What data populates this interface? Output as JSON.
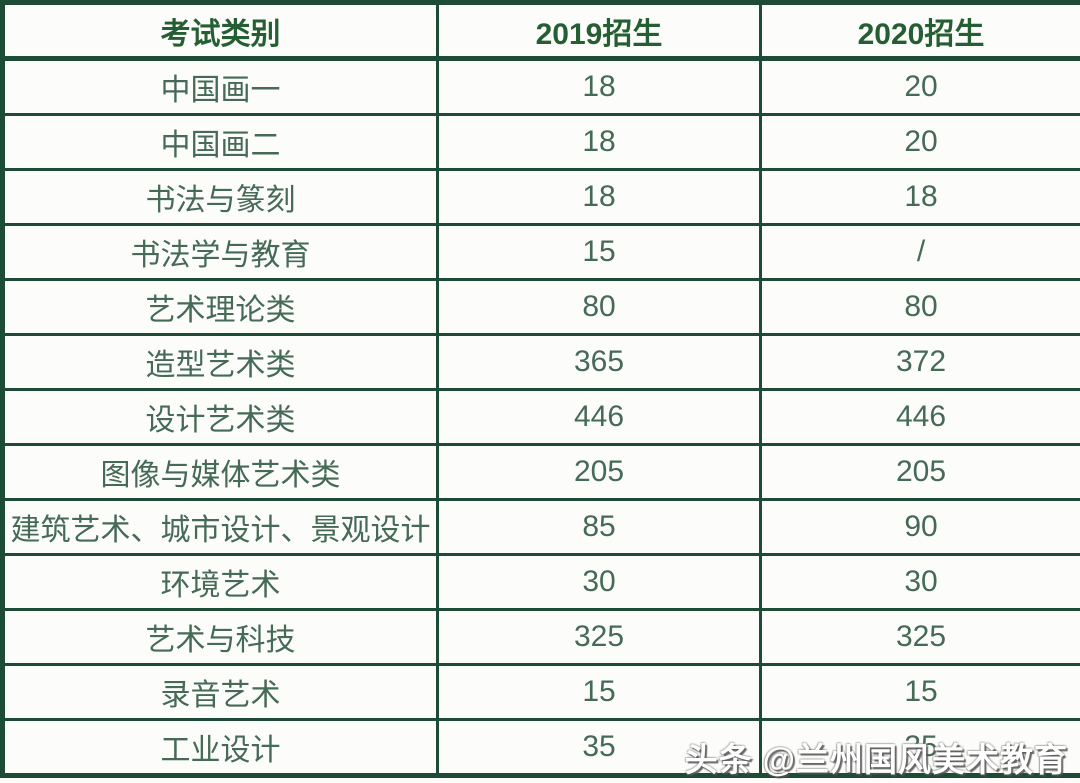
{
  "table": {
    "columns": [
      {
        "label": "考试类别"
      },
      {
        "label": "2019招生"
      },
      {
        "label": "2020招生"
      }
    ],
    "rows": [
      {
        "category": "中国画一",
        "y2019": "18",
        "y2020": "20"
      },
      {
        "category": "中国画二",
        "y2019": "18",
        "y2020": "20"
      },
      {
        "category": "书法与篆刻",
        "y2019": "18",
        "y2020": "18"
      },
      {
        "category": "书法学与教育",
        "y2019": "15",
        "y2020": "/"
      },
      {
        "category": "艺术理论类",
        "y2019": "80",
        "y2020": "80"
      },
      {
        "category": "造型艺术类",
        "y2019": "365",
        "y2020": "372"
      },
      {
        "category": "设计艺术类",
        "y2019": "446",
        "y2020": "446"
      },
      {
        "category": "图像与媒体艺术类",
        "y2019": "205",
        "y2020": "205"
      },
      {
        "category": "建筑艺术、城市设计、景观设计",
        "y2019": "85",
        "y2020": "90"
      },
      {
        "category": "环境艺术",
        "y2019": "30",
        "y2020": "30"
      },
      {
        "category": "艺术与科技",
        "y2019": "325",
        "y2020": "325"
      },
      {
        "category": "录音艺术",
        "y2019": "15",
        "y2020": "15"
      },
      {
        "category": "工业设计",
        "y2019": "35",
        "y2020": "35"
      }
    ]
  },
  "watermark": {
    "text": "头条 @兰州国风美术教育"
  },
  "colors": {
    "border_green": "#1d4b35",
    "header_text_green": "#265e33",
    "body_text_green": "#456a55",
    "background": "#fcfcfa",
    "watermark_text": "#ffffff"
  }
}
